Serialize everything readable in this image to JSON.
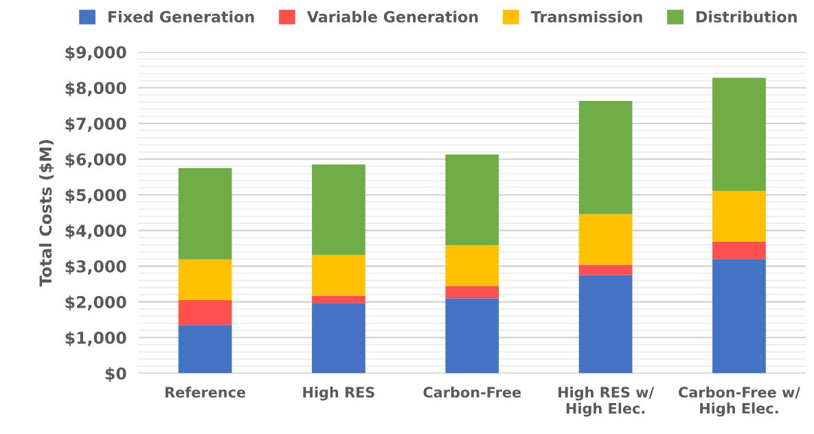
{
  "chart_data": {
    "type": "bar",
    "stacked": true,
    "ylabel": "Total Costs ($M)",
    "categories": [
      "Reference",
      "High RES",
      "Carbon-Free",
      "High RES w/\nHigh Elec.",
      "Carbon-Free w/\nHigh Elec."
    ],
    "series": [
      {
        "name": "Fixed Generation",
        "color": "#4472c4",
        "values": [
          1350,
          1970,
          2100,
          2750,
          3200
        ]
      },
      {
        "name": "Variable Generation",
        "color": "#ff5050",
        "values": [
          700,
          200,
          350,
          290,
          490
        ]
      },
      {
        "name": "Transmission",
        "color": "#ffc000",
        "values": [
          1140,
          1140,
          1140,
          1420,
          1420
        ]
      },
      {
        "name": "Distribution",
        "color": "#70ad47",
        "values": [
          2560,
          2540,
          2540,
          3170,
          3170
        ]
      }
    ],
    "ylim": [
      0,
      9000
    ],
    "yticks": [
      {
        "value": 0,
        "label": "$0"
      },
      {
        "value": 200,
        "label": null
      },
      {
        "value": 400,
        "label": null
      },
      {
        "value": 600,
        "label": null
      },
      {
        "value": 800,
        "label": null
      },
      {
        "value": 1000,
        "label": "$1,000"
      },
      {
        "value": 1200,
        "label": null
      },
      {
        "value": 1400,
        "label": null
      },
      {
        "value": 1600,
        "label": null
      },
      {
        "value": 1800,
        "label": null
      },
      {
        "value": 2000,
        "label": "$2,000"
      },
      {
        "value": 2200,
        "label": null
      },
      {
        "value": 2400,
        "label": null
      },
      {
        "value": 2600,
        "label": null
      },
      {
        "value": 2800,
        "label": null
      },
      {
        "value": 3000,
        "label": "$3,000"
      },
      {
        "value": 3200,
        "label": null
      },
      {
        "value": 3400,
        "label": null
      },
      {
        "value": 3600,
        "label": null
      },
      {
        "value": 3800,
        "label": null
      },
      {
        "value": 4000,
        "label": "$4,000"
      },
      {
        "value": 4200,
        "label": null
      },
      {
        "value": 4400,
        "label": null
      },
      {
        "value": 4600,
        "label": null
      },
      {
        "value": 4800,
        "label": null
      },
      {
        "value": 5000,
        "label": "$5,000"
      },
      {
        "value": 5200,
        "label": null
      },
      {
        "value": 5400,
        "label": null
      },
      {
        "value": 5600,
        "label": null
      },
      {
        "value": 5800,
        "label": null
      },
      {
        "value": 6000,
        "label": "$6,000"
      },
      {
        "value": 6200,
        "label": null
      },
      {
        "value": 6400,
        "label": null
      },
      {
        "value": 6600,
        "label": null
      },
      {
        "value": 6800,
        "label": null
      },
      {
        "value": 7000,
        "label": "$7,000"
      },
      {
        "value": 7200,
        "label": null
      },
      {
        "value": 7400,
        "label": null
      },
      {
        "value": 7600,
        "label": null
      },
      {
        "value": 7800,
        "label": null
      },
      {
        "value": 8000,
        "label": "$8,000"
      },
      {
        "value": 8200,
        "label": null
      },
      {
        "value": 8400,
        "label": null
      },
      {
        "value": 8600,
        "label": null
      },
      {
        "value": 8800,
        "label": null
      },
      {
        "value": 9000,
        "label": "$9,000"
      }
    ],
    "grid": "y",
    "legend": "top"
  }
}
